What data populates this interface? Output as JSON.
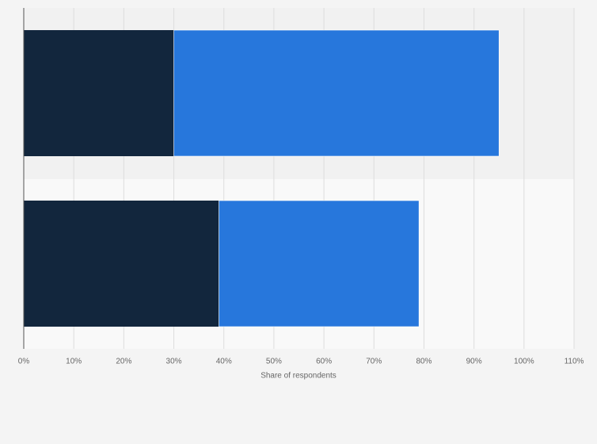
{
  "chart_data": {
    "type": "stacked_bar_horizontal",
    "categories": [
      null,
      null
    ],
    "series": [
      {
        "color": "#12263d",
        "values": [
          30,
          39
        ]
      },
      {
        "color": "#2777dc",
        "values": [
          65,
          40
        ]
      }
    ],
    "xlim": [
      0,
      110
    ],
    "xticks": [
      {
        "value": 0,
        "label": "0%"
      },
      {
        "value": 10,
        "label": "10%"
      },
      {
        "value": 20,
        "label": "20%"
      },
      {
        "value": 30,
        "label": "30%"
      },
      {
        "value": 40,
        "label": "40%"
      },
      {
        "value": 50,
        "label": "50%"
      },
      {
        "value": 60,
        "label": "60%"
      },
      {
        "value": 70,
        "label": "70%"
      },
      {
        "value": 80,
        "label": "80%"
      },
      {
        "value": 90,
        "label": "90%"
      },
      {
        "value": 100,
        "label": "100%"
      },
      {
        "value": 110,
        "label": "110%"
      }
    ],
    "xlabel": "Share of respondents",
    "grid": true
  }
}
